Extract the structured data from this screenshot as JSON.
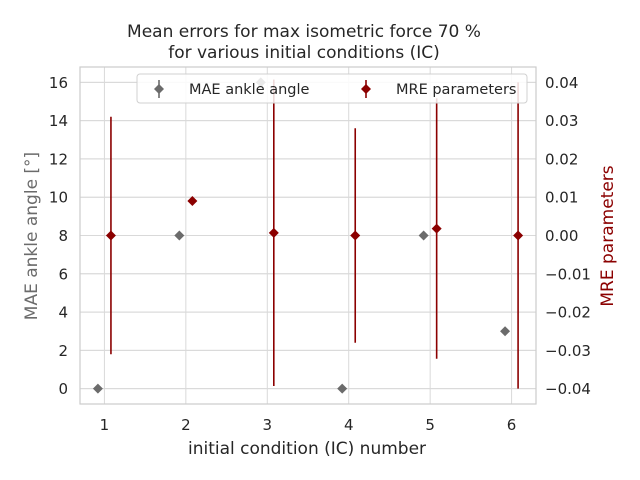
{
  "chart_data": {
    "type": "scatter",
    "title_lines": [
      "Mean errors for  max isometric force 70 %",
      "for various initial conditions (IC)"
    ],
    "xlabel": "initial condition (IC) number",
    "ylabel_left": "MAE ankle angle [°]",
    "ylabel_right": "MRE parameters",
    "x_ticks": [
      1,
      2,
      3,
      4,
      5,
      6
    ],
    "y_left_ticks": [
      0,
      2,
      4,
      6,
      8,
      10,
      12,
      14,
      16
    ],
    "y_right_ticks": [
      0.04,
      0.03,
      0.02,
      0.01,
      0.0,
      -0.01,
      -0.02,
      -0.03,
      -0.04
    ],
    "y_right_tick_labels": [
      "0.04",
      "0.03",
      "0.02",
      "0.01",
      "0.00",
      "−0.01",
      "−0.02",
      "−0.03",
      "−0.04"
    ],
    "xlim": [
      0.7,
      6.3
    ],
    "ylim_left": [
      -0.8,
      16.8
    ],
    "ylim_right": [
      -0.044,
      0.044
    ],
    "grid": true,
    "legend_placement": "top-center",
    "colors": {
      "left": "#6b6b6b",
      "right": "#8b0000",
      "grid": "#d9d9d9",
      "spine": "#cccccc"
    },
    "series": [
      {
        "name": "MAE ankle angle",
        "axis": "left",
        "x": [
          0.92,
          1.92,
          2.92,
          3.92,
          4.92,
          5.92
        ],
        "y": [
          0,
          8,
          16,
          0,
          8,
          3
        ]
      },
      {
        "name": "MRE parameters",
        "axis": "right",
        "x": [
          1.08,
          2.08,
          3.08,
          4.08,
          5.08,
          6.08
        ],
        "y": [
          0.0,
          0.009,
          0.0007,
          0.0,
          0.0018,
          0.0
        ],
        "err": [
          0.031,
          0.0,
          0.04,
          0.028,
          0.034,
          0.04
        ]
      }
    ]
  }
}
